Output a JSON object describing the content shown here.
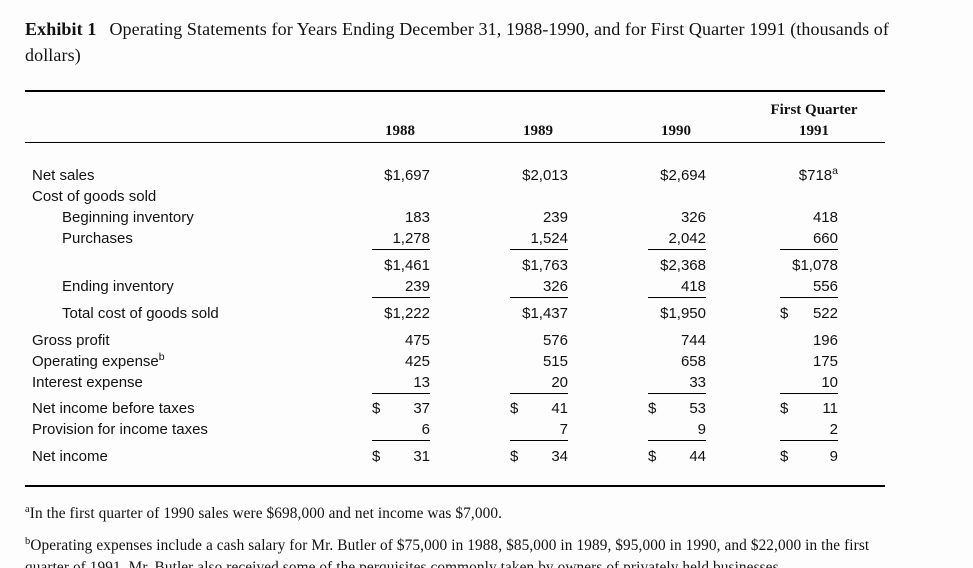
{
  "colors": {
    "text": "#121212",
    "page_background": "#fdfdfd",
    "rule": "#000000"
  },
  "currency": "$",
  "title": {
    "exhibit": "Exhibit 1",
    "text": "Operating Statements for Years Ending December 31, 1988-1990, and for First Quarter 1991 (thousands of dollars)"
  },
  "table": {
    "header": {
      "first_quarter": "First Quarter",
      "years": [
        "1988",
        "1989",
        "1990",
        "1991"
      ]
    },
    "rows": [
      {
        "label": "Net sales",
        "sup": "a",
        "values": [
          "$1,697",
          "$2,013",
          "$2,694",
          "$718"
        ]
      },
      {
        "label": "Cost of goods sold",
        "values": [
          "",
          "",
          "",
          ""
        ]
      },
      {
        "label": "Beginning inventory",
        "values": [
          "183",
          "239",
          "326",
          "418"
        ]
      },
      {
        "label": "Purchases",
        "values": [
          "1,278",
          "1,524",
          "2,042",
          "660"
        ]
      },
      {
        "label": "",
        "values": [
          "$1,461",
          "$1,763",
          "$2,368",
          "$1,078"
        ]
      },
      {
        "label": "Ending inventory",
        "values": [
          "239",
          "326",
          "418",
          "556"
        ]
      },
      {
        "label": "Total cost of goods sold",
        "values": [
          "$1,222",
          "$1,437",
          "$1,950",
          "522"
        ]
      },
      {
        "label": "Gross profit",
        "values": [
          "475",
          "576",
          "744",
          "196"
        ]
      },
      {
        "label": "Operating expense",
        "sup": "b",
        "values": [
          "425",
          "515",
          "658",
          "175"
        ]
      },
      {
        "label": "Interest expense",
        "values": [
          "13",
          "20",
          "33",
          "10"
        ]
      },
      {
        "label": "Net income before taxes",
        "values": [
          "37",
          "41",
          "53",
          "11"
        ]
      },
      {
        "label": "Provision for income taxes",
        "values": [
          "6",
          "7",
          "9",
          "2"
        ]
      },
      {
        "label": "Net income",
        "values": [
          "31",
          "34",
          "44",
          "9"
        ]
      }
    ]
  },
  "footnotes": {
    "a": {
      "marker": "a",
      "text": "In the first quarter of 1990 sales were $698,000 and net income was $7,000."
    },
    "b": {
      "marker": "b",
      "text": "Operating expenses include a cash salary for Mr. Butler of $75,000 in 1988, $85,000 in 1989, $95,000 in 1990, and $22,000 in the first quarter of 1991.  Mr. Butler also received some of the perquisites commonly taken by owners of privately held businesses"
    }
  }
}
